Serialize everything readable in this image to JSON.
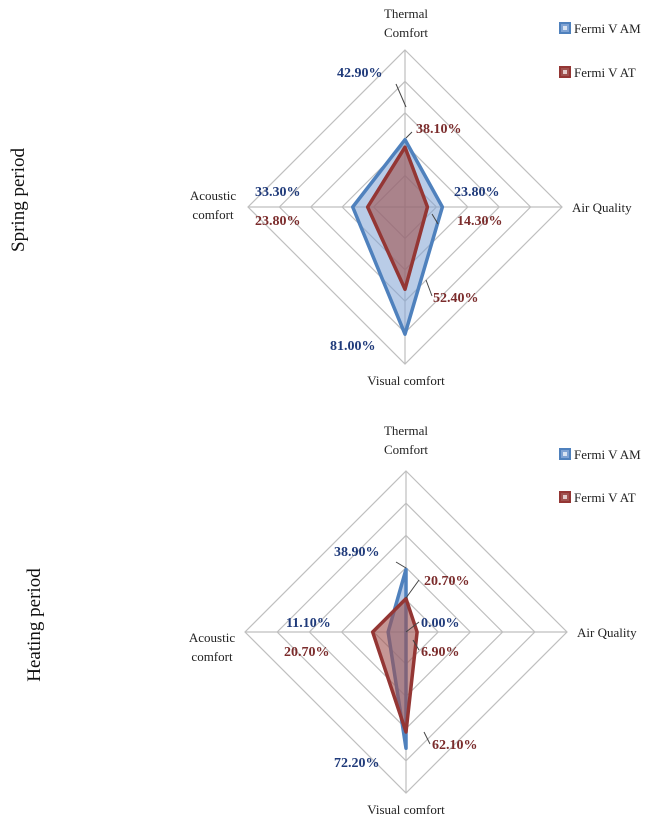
{
  "chart_data": [
    {
      "type": "radar",
      "period_label": "Spring period",
      "axes": [
        "Thermal Comfort",
        "Air Quality",
        "Visual comfort",
        "Acoustic comfort"
      ],
      "axis_label_lines": [
        [
          "Thermal",
          "Comfort"
        ],
        [
          "Air Quality"
        ],
        [
          "Visual comfort"
        ],
        [
          "Acoustic",
          "comfort"
        ]
      ],
      "range": [
        0,
        100
      ],
      "grid_rings": 5,
      "legend_position": "top-right",
      "series": [
        {
          "name": "Fermi V AM",
          "values": [
            42.9,
            23.8,
            81.0,
            33.3
          ],
          "labels": [
            "42.90%",
            "23.80%",
            "81.00%",
            "33.30%"
          ]
        },
        {
          "name": "Fermi V AT",
          "values": [
            38.1,
            14.3,
            52.4,
            23.8
          ],
          "labels": [
            "38.10%",
            "14.30%",
            "52.40%",
            "23.80%"
          ]
        }
      ]
    },
    {
      "type": "radar",
      "period_label": "Heating period",
      "axes": [
        "Thermal Comfort",
        "Air Quality",
        "Visual comfort",
        "Acoustic comfort"
      ],
      "axis_label_lines": [
        [
          "Thermal",
          "Comfort"
        ],
        [
          "Air Quality"
        ],
        [
          "Visual comfort"
        ],
        [
          "Acoustic",
          "comfort"
        ]
      ],
      "range": [
        0,
        100
      ],
      "grid_rings": 5,
      "legend_position": "top-right",
      "series": [
        {
          "name": "Fermi V AM",
          "values": [
            38.9,
            0.0,
            72.2,
            11.1
          ],
          "labels": [
            "38.90%",
            "0.00%",
            "72.20%",
            "11.10%"
          ]
        },
        {
          "name": "Fermi V AT",
          "values": [
            20.7,
            6.9,
            62.1,
            20.7
          ],
          "labels": [
            "20.70%",
            "6.90%",
            "62.10%",
            "20.70%"
          ]
        }
      ]
    }
  ],
  "colors": {
    "series_am": "#4F81BD",
    "series_am_fill": "#7FA3D4",
    "series_at": "#943634",
    "series_at_fill": "#A0524F",
    "label_am": "#1F3A7A",
    "label_at": "#7B2C2C",
    "grid": "#BFBFBF"
  }
}
